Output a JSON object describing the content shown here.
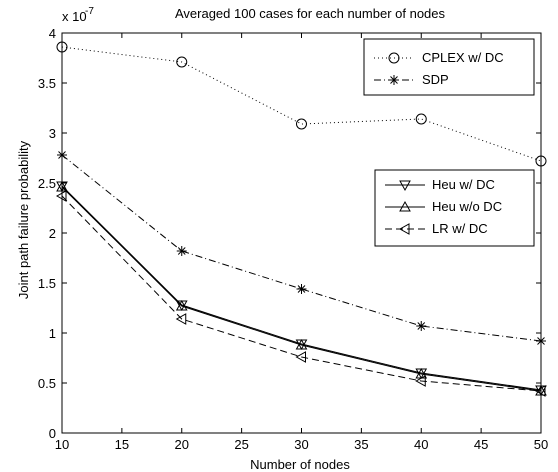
{
  "chart_data": {
    "type": "line",
    "title": "Averaged 100 cases for each number of nodes",
    "xlabel": "Number of nodes",
    "ylabel": "Joint path failure probability",
    "y_exponent_label": "x 10",
    "y_exponent_power": "-7",
    "xlim": [
      10,
      50
    ],
    "ylim": [
      0,
      4
    ],
    "xticks": [
      10,
      15,
      20,
      25,
      30,
      35,
      40,
      45,
      50
    ],
    "xtick_labels": [
      "10",
      "15",
      "20",
      "25",
      "30",
      "35",
      "40",
      "45",
      "50"
    ],
    "yticks": [
      0,
      0.5,
      1,
      1.5,
      2,
      2.5,
      3,
      3.5,
      4
    ],
    "ytick_labels": [
      "0",
      "0.5",
      "1",
      "1.5",
      "2",
      "2.5",
      "3",
      "3.5",
      "4"
    ],
    "grid": false,
    "x": [
      10,
      20,
      30,
      40,
      50
    ],
    "series": [
      {
        "name": "CPLEX w/ DC",
        "values": [
          3.86,
          3.71,
          3.09,
          3.14,
          2.72
        ],
        "marker": "circle",
        "dash": "dotted",
        "legend": "top-right"
      },
      {
        "name": "SDP",
        "values": [
          2.78,
          1.82,
          1.44,
          1.07,
          0.92
        ],
        "marker": "star",
        "dash": "dashdot",
        "legend": "top-right"
      },
      {
        "name": "Heu w/ DC",
        "values": [
          2.47,
          1.28,
          0.89,
          0.6,
          0.43
        ],
        "marker": "triangle-down",
        "dash": "solid",
        "legend": "middle-right"
      },
      {
        "name": "Heu w/o DC",
        "values": [
          2.46,
          1.27,
          0.88,
          0.59,
          0.42
        ],
        "marker": "triangle-up",
        "dash": "solid",
        "legend": "middle-right"
      },
      {
        "name": "LR w/ DC",
        "values": [
          2.37,
          1.14,
          0.76,
          0.52,
          0.42
        ],
        "marker": "triangle-left",
        "dash": "dashed",
        "legend": "middle-right"
      }
    ]
  }
}
